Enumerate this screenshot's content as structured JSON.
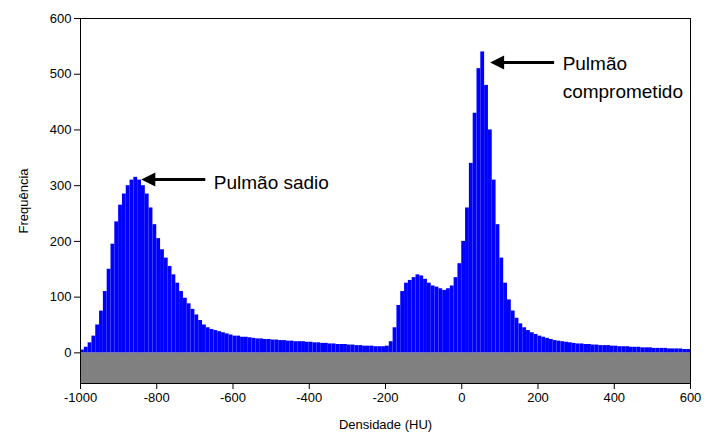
{
  "chart_data": {
    "type": "histogram",
    "x_label": "Densidade (HU)",
    "y_label": "Frequência",
    "color": "#0000ff",
    "grid": false,
    "xlim": [
      -1000,
      600
    ],
    "ylim": [
      -55,
      600
    ],
    "xticks": [
      -1000,
      -800,
      -600,
      -400,
      -200,
      0,
      200,
      400,
      600
    ],
    "yticks": [
      0,
      100,
      200,
      300,
      400,
      500,
      600
    ],
    "annotations": [
      {
        "text": "Pulmão sadio",
        "x": -855,
        "y": 310
      },
      {
        "text": "Pulmão comprometido",
        "x": 60,
        "y": 520
      }
    ],
    "bins": [
      -1000,
      -990,
      -980,
      -970,
      -960,
      -950,
      -940,
      -930,
      -920,
      -910,
      -900,
      -890,
      -880,
      -870,
      -860,
      -850,
      -840,
      -830,
      -820,
      -810,
      -800,
      -790,
      -780,
      -770,
      -760,
      -750,
      -740,
      -730,
      -720,
      -710,
      -700,
      -690,
      -680,
      -670,
      -660,
      -650,
      -640,
      -630,
      -620,
      -610,
      -600,
      -590,
      -580,
      -570,
      -560,
      -550,
      -540,
      -530,
      -520,
      -510,
      -500,
      -490,
      -480,
      -470,
      -460,
      -450,
      -440,
      -430,
      -420,
      -410,
      -400,
      -390,
      -380,
      -370,
      -360,
      -350,
      -340,
      -330,
      -320,
      -310,
      -300,
      -290,
      -280,
      -270,
      -260,
      -250,
      -240,
      -230,
      -220,
      -210,
      -200,
      -190,
      -180,
      -170,
      -160,
      -150,
      -140,
      -130,
      -120,
      -110,
      -100,
      -90,
      -80,
      -70,
      -60,
      -50,
      -40,
      -30,
      -20,
      -10,
      0,
      10,
      20,
      30,
      40,
      50,
      60,
      70,
      80,
      90,
      100,
      110,
      120,
      130,
      140,
      150,
      160,
      170,
      180,
      190,
      200,
      210,
      220,
      230,
      240,
      250,
      260,
      270,
      280,
      290,
      300,
      310,
      320,
      330,
      340,
      350,
      360,
      370,
      380,
      390,
      400,
      410,
      420,
      430,
      440,
      450,
      460,
      470,
      480,
      490,
      500,
      510,
      520,
      530,
      540,
      550,
      560,
      570,
      580,
      590,
      600
    ],
    "values": [
      5,
      10,
      18,
      30,
      50,
      75,
      110,
      150,
      195,
      235,
      265,
      285,
      300,
      310,
      315,
      310,
      300,
      285,
      260,
      230,
      205,
      185,
      170,
      155,
      140,
      125,
      110,
      98,
      88,
      78,
      68,
      58,
      50,
      45,
      42,
      40,
      38,
      36,
      34,
      32,
      30,
      30,
      28,
      28,
      27,
      26,
      25,
      25,
      24,
      24,
      23,
      23,
      22,
      22,
      21,
      21,
      20,
      20,
      20,
      19,
      19,
      18,
      18,
      17,
      17,
      16,
      16,
      15,
      15,
      15,
      14,
      14,
      13,
      13,
      12,
      12,
      12,
      11,
      11,
      11,
      12,
      20,
      45,
      85,
      110,
      125,
      130,
      135,
      140,
      138,
      132,
      125,
      120,
      118,
      115,
      112,
      115,
      120,
      135,
      160,
      200,
      260,
      340,
      430,
      510,
      540,
      480,
      400,
      310,
      230,
      170,
      125,
      95,
      75,
      62,
      52,
      45,
      40,
      36,
      33,
      30,
      28,
      26,
      24,
      22,
      21,
      20,
      19,
      18,
      17,
      16,
      16,
      15,
      15,
      14,
      14,
      13,
      13,
      13,
      12,
      12,
      11,
      11,
      11,
      10,
      10,
      10,
      9,
      9,
      9,
      8,
      8,
      8,
      8,
      7,
      7,
      7,
      7,
      6,
      6
    ]
  }
}
